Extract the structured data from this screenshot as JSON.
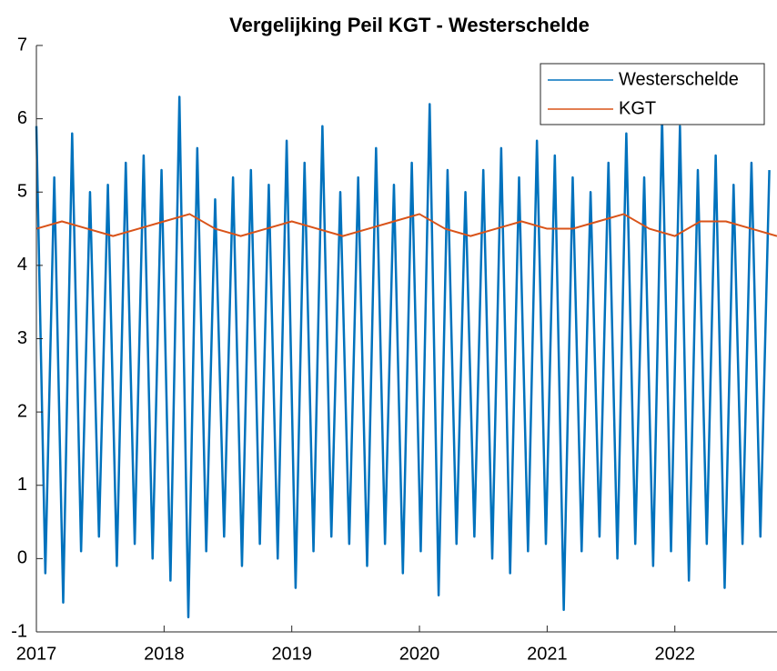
{
  "chart_data": {
    "type": "line",
    "title": "Vergelijking Peil KGT - Westerschelde",
    "xlim": [
      2017,
      2022.8
    ],
    "xticks": [
      2017,
      2018,
      2019,
      2020,
      2021,
      2022
    ],
    "ylim": [
      -1,
      7
    ],
    "yticks": [
      -1,
      0,
      1,
      2,
      3,
      4,
      5,
      6,
      7
    ],
    "legend": "northeast",
    "series": [
      {
        "name": "Westerschelde",
        "color": "#0072bd",
        "x": [
          2017,
          2017.07,
          2017.14,
          2017.21,
          2017.28,
          2017.35,
          2017.42,
          2017.49,
          2017.56,
          2017.63,
          2017.7,
          2017.77,
          2017.84,
          2017.91,
          2017.98,
          2018.05,
          2018.12,
          2018.19,
          2018.26,
          2018.33,
          2018.4,
          2018.47,
          2018.54,
          2018.61,
          2018.68,
          2018.75,
          2018.82,
          2018.89,
          2018.96,
          2019.03,
          2019.1,
          2019.17,
          2019.24,
          2019.31,
          2019.38,
          2019.45,
          2019.52,
          2019.59,
          2019.66,
          2019.73,
          2019.8,
          2019.87,
          2019.94,
          2020.01,
          2020.08,
          2020.15,
          2020.22,
          2020.29,
          2020.36,
          2020.43,
          2020.5,
          2020.57,
          2020.64,
          2020.71,
          2020.78,
          2020.85,
          2020.92,
          2020.99,
          2021.06,
          2021.13,
          2021.2,
          2021.27,
          2021.34,
          2021.41,
          2021.48,
          2021.55,
          2021.62,
          2021.69,
          2021.76,
          2021.83,
          2021.9,
          2021.97,
          2022.04,
          2022.11,
          2022.18,
          2022.25,
          2022.32,
          2022.39,
          2022.46,
          2022.53,
          2022.6,
          2022.67,
          2022.74
        ],
        "values": [
          5.9,
          -0.2,
          5.2,
          -0.6,
          5.8,
          0.1,
          5.0,
          0.3,
          5.1,
          -0.1,
          5.4,
          0.2,
          5.5,
          0.0,
          5.3,
          -0.3,
          6.3,
          -0.8,
          5.6,
          0.1,
          4.9,
          0.3,
          5.2,
          -0.1,
          5.3,
          0.2,
          5.1,
          0.0,
          5.7,
          -0.4,
          5.4,
          0.1,
          5.9,
          0.3,
          5.0,
          0.2,
          5.2,
          -0.1,
          5.6,
          0.2,
          5.1,
          -0.2,
          5.4,
          0.1,
          6.2,
          -0.5,
          5.3,
          0.2,
          5.0,
          0.3,
          5.3,
          0.0,
          5.6,
          -0.2,
          5.2,
          0.1,
          5.7,
          0.2,
          5.5,
          -0.7,
          5.2,
          0.1,
          5.0,
          0.3,
          5.4,
          0.0,
          5.8,
          0.2,
          5.2,
          -0.1,
          6.0,
          0.1,
          5.9,
          -0.3,
          5.3,
          0.2,
          5.5,
          -0.4,
          5.1,
          0.2,
          5.4,
          0.3,
          5.3
        ]
      },
      {
        "name": "KGT",
        "color": "#d95319",
        "x": [
          2017,
          2017.2,
          2017.4,
          2017.6,
          2017.8,
          2018,
          2018.2,
          2018.4,
          2018.6,
          2018.8,
          2019,
          2019.2,
          2019.4,
          2019.6,
          2019.8,
          2020,
          2020.2,
          2020.4,
          2020.6,
          2020.8,
          2021,
          2021.2,
          2021.4,
          2021.6,
          2021.8,
          2022,
          2022.2,
          2022.4,
          2022.6,
          2022.8
        ],
        "values": [
          4.5,
          4.6,
          4.5,
          4.4,
          4.5,
          4.6,
          4.7,
          4.5,
          4.4,
          4.5,
          4.6,
          4.5,
          4.4,
          4.5,
          4.6,
          4.7,
          4.5,
          4.4,
          4.5,
          4.6,
          4.5,
          4.5,
          4.6,
          4.7,
          4.5,
          4.4,
          4.6,
          4.6,
          4.5,
          4.4
        ]
      }
    ]
  }
}
